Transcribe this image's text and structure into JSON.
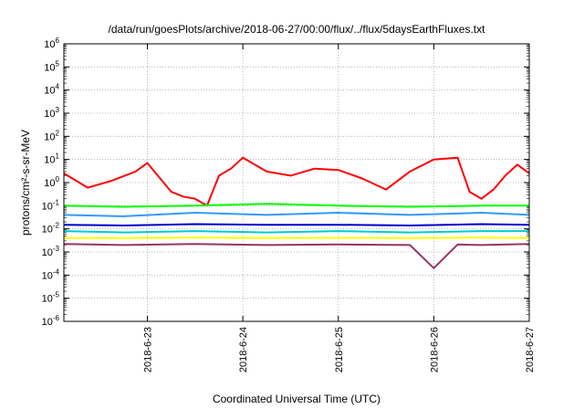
{
  "chart_data": {
    "type": "line",
    "title": "/data/run/goesPlots/archive/2018-06-27/00:00/flux/../flux/5daysEarthFluxes.txt",
    "xlabel": "Coordinated Universal Time (UTC)",
    "ylabel": "protons/cm²-s-sr-MeV",
    "x_range": [
      "2018-06-22T03:00",
      "2018-06-27T00:00"
    ],
    "y_scale": "log",
    "ylim": [
      1e-06,
      1000000.0
    ],
    "grid": true,
    "legend": "none",
    "x_ticks": [
      "2018-6-23",
      "2018-6-24",
      "2018-6-25",
      "2018-6-26",
      "2018-6-27"
    ],
    "y_ticks": [
      {
        "base": "10",
        "exp": "-6"
      },
      {
        "base": "10",
        "exp": "-5"
      },
      {
        "base": "10",
        "exp": "-4"
      },
      {
        "base": "10",
        "exp": "-3"
      },
      {
        "base": "10",
        "exp": "-2"
      },
      {
        "base": "10",
        "exp": "-1"
      },
      {
        "base": "10",
        "exp": "0"
      },
      {
        "base": "10",
        "exp": "1"
      },
      {
        "base": "10",
        "exp": "2"
      },
      {
        "base": "10",
        "exp": "3"
      },
      {
        "base": "10",
        "exp": "4"
      },
      {
        "base": "10",
        "exp": "5"
      },
      {
        "base": "10",
        "exp": "6"
      }
    ],
    "series": [
      {
        "color": "#ff0000",
        "x": [
          "2018-06-22T03:00",
          "2018-06-22T09:00",
          "2018-06-22T15:00",
          "2018-06-22T21:00",
          "2018-06-23T00:00",
          "2018-06-23T06:00",
          "2018-06-23T09:00",
          "2018-06-23T12:00",
          "2018-06-23T15:00",
          "2018-06-23T18:00",
          "2018-06-23T21:00",
          "2018-06-24T00:00",
          "2018-06-24T06:00",
          "2018-06-24T12:00",
          "2018-06-24T18:00",
          "2018-06-25T00:00",
          "2018-06-25T06:00",
          "2018-06-25T12:00",
          "2018-06-25T18:00",
          "2018-06-26T00:00",
          "2018-06-26T06:00",
          "2018-06-26T09:00",
          "2018-06-26T12:00",
          "2018-06-26T15:00",
          "2018-06-26T18:00",
          "2018-06-26T21:00",
          "2018-06-27T00:00"
        ],
        "y": [
          2.5,
          0.6,
          1.2,
          3,
          7,
          0.4,
          0.25,
          0.2,
          0.1,
          2,
          4,
          12,
          3,
          2,
          4,
          3.5,
          1.5,
          0.5,
          3,
          10,
          12,
          0.4,
          0.2,
          0.5,
          2,
          6,
          2.5
        ]
      },
      {
        "color": "#00ff00",
        "x": [
          "2018-06-22T03:00",
          "2018-06-22T18:00",
          "2018-06-23T12:00",
          "2018-06-24T06:00",
          "2018-06-25T00:00",
          "2018-06-25T18:00",
          "2018-06-26T12:00",
          "2018-06-27T00:00"
        ],
        "y": [
          0.1,
          0.09,
          0.1,
          0.12,
          0.1,
          0.09,
          0.1,
          0.1
        ]
      },
      {
        "color": "#3399ff",
        "x": [
          "2018-06-22T03:00",
          "2018-06-22T18:00",
          "2018-06-23T12:00",
          "2018-06-24T06:00",
          "2018-06-25T00:00",
          "2018-06-25T18:00",
          "2018-06-26T12:00",
          "2018-06-27T00:00"
        ],
        "y": [
          0.04,
          0.035,
          0.05,
          0.04,
          0.05,
          0.04,
          0.05,
          0.04
        ]
      },
      {
        "color": "#0000cc",
        "x": [
          "2018-06-22T03:00",
          "2018-06-22T18:00",
          "2018-06-23T12:00",
          "2018-06-24T06:00",
          "2018-06-25T00:00",
          "2018-06-25T18:00",
          "2018-06-26T12:00",
          "2018-06-27T00:00"
        ],
        "y": [
          0.015,
          0.014,
          0.016,
          0.015,
          0.015,
          0.014,
          0.016,
          0.015
        ]
      },
      {
        "color": "#00cccc",
        "x": [
          "2018-06-22T03:00",
          "2018-06-22T18:00",
          "2018-06-23T12:00",
          "2018-06-24T06:00",
          "2018-06-25T00:00",
          "2018-06-25T18:00",
          "2018-06-26T12:00",
          "2018-06-27T00:00"
        ],
        "y": [
          0.008,
          0.007,
          0.008,
          0.007,
          0.008,
          0.007,
          0.008,
          0.008
        ]
      },
      {
        "color": "#ffff00",
        "x": [
          "2018-06-22T03:00",
          "2018-06-22T18:00",
          "2018-06-23T12:00",
          "2018-06-24T06:00",
          "2018-06-25T00:00",
          "2018-06-25T18:00",
          "2018-06-26T12:00",
          "2018-06-27T00:00"
        ],
        "y": [
          0.004,
          0.004,
          0.0042,
          0.004,
          0.0041,
          0.004,
          0.0042,
          0.004
        ]
      },
      {
        "color": "#993366",
        "x": [
          "2018-06-22T03:00",
          "2018-06-22T18:00",
          "2018-06-23T12:00",
          "2018-06-24T06:00",
          "2018-06-25T00:00",
          "2018-06-25T18:00",
          "2018-06-26T00:00",
          "2018-06-26T06:00",
          "2018-06-26T12:00",
          "2018-06-27T00:00"
        ],
        "y": [
          0.0022,
          0.002,
          0.0022,
          0.002,
          0.0021,
          0.002,
          0.0002,
          0.0021,
          0.002,
          0.0022
        ]
      }
    ]
  }
}
